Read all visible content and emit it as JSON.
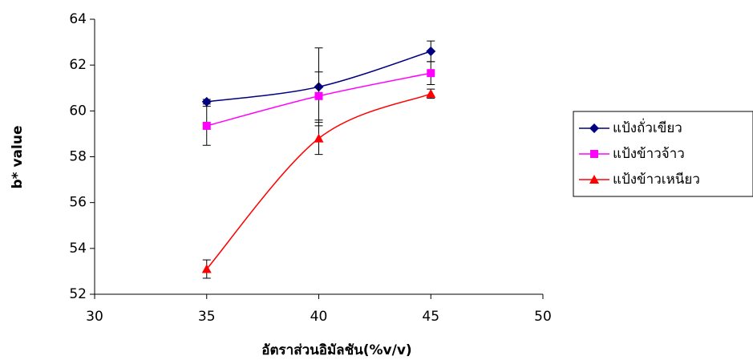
{
  "chart_data": {
    "type": "line",
    "x_label": "อัตราส่วนอิมัลชัน(%v/v)",
    "y_label": "b* value",
    "x": [
      35,
      40,
      45
    ],
    "series": [
      {
        "name": "แป้งถั่วเขียว",
        "color": "#000080",
        "marker": "diamond",
        "values": [
          60.4,
          61.05,
          62.6
        ],
        "errors": [
          0.1,
          1.7,
          0.45
        ]
      },
      {
        "name": "แป้งข้าวจ้าว",
        "color": "#ff00ff",
        "marker": "square",
        "values": [
          59.35,
          60.65,
          61.65
        ],
        "errors": [
          0.85,
          1.05,
          0.5
        ]
      },
      {
        "name": "แป้งข้าวเหนียว",
        "color": "#ff0000",
        "marker": "triangle",
        "values": [
          53.1,
          58.8,
          60.75
        ],
        "errors": [
          0.4,
          0.7,
          0.2
        ]
      }
    ],
    "xlim": [
      30,
      50
    ],
    "xticks": [
      30,
      35,
      40,
      45,
      50
    ],
    "ylim": [
      52,
      64
    ],
    "yticks": [
      52,
      54,
      56,
      58,
      60,
      62,
      64
    ],
    "legend": "right",
    "smooth": true
  }
}
